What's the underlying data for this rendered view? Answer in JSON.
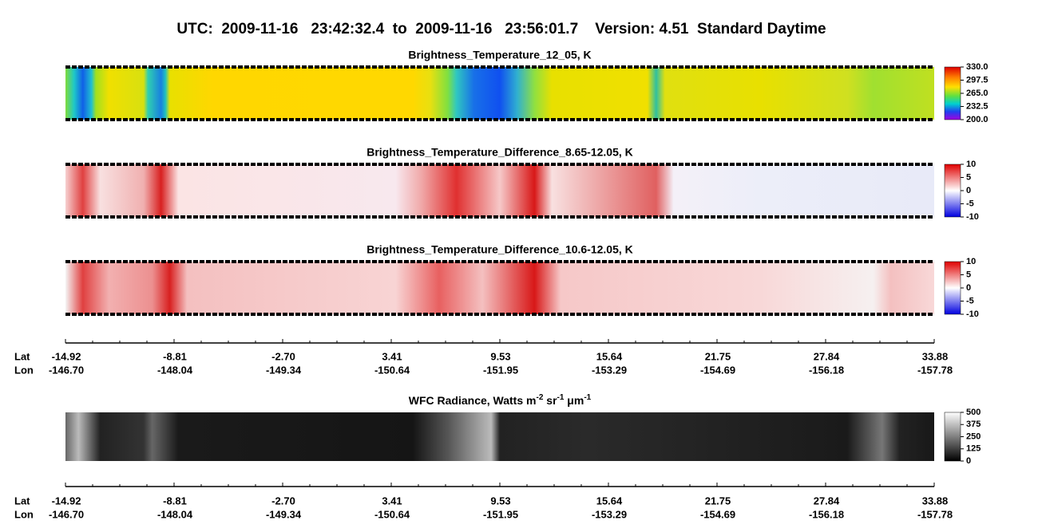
{
  "header": {
    "title": "UTC:  2009-11-16   23:42:32.4  to  2009-11-16   23:56:01.7    Version: 4.51  Standard Daytime"
  },
  "panels": [
    {
      "title": "Brightness_Temperature_12_05, K",
      "ticks": [
        {
          "value": 330,
          "label": "330.0"
        },
        {
          "value": 297.5,
          "label": "297.5"
        },
        {
          "value": 265,
          "label": "265.0"
        },
        {
          "value": 232.5,
          "label": "232.5"
        },
        {
          "value": 200,
          "label": "200.0"
        }
      ]
    },
    {
      "title": "Brightness_Temperature_Difference_8.65-12.05, K",
      "ticks": [
        10,
        5,
        0,
        -5,
        -10
      ]
    },
    {
      "title": "Brightness_Temperature_Difference_10.6-12.05, K",
      "ticks": [
        10,
        5,
        0,
        -5,
        -10
      ]
    },
    {
      "title_parts": [
        "WFC Radiance, Watts m",
        "-2",
        " sr",
        "-1",
        " μm",
        "-1"
      ],
      "ticks": [
        500,
        375,
        250,
        125,
        0
      ]
    }
  ],
  "axis": {
    "lat_label": "Lat",
    "lon_label": "Lon",
    "lat": [
      -14.92,
      -8.81,
      {
        "value": -2.7,
        "label": "-2.70"
      },
      3.41,
      9.53,
      15.64,
      21.75,
      27.84,
      33.88
    ],
    "lon": [
      {
        "value": -146.7,
        "label": "-146.70"
      },
      -148.04,
      -149.34,
      -150.64,
      -151.95,
      -153.29,
      -154.69,
      -156.18,
      -157.78
    ]
  }
}
